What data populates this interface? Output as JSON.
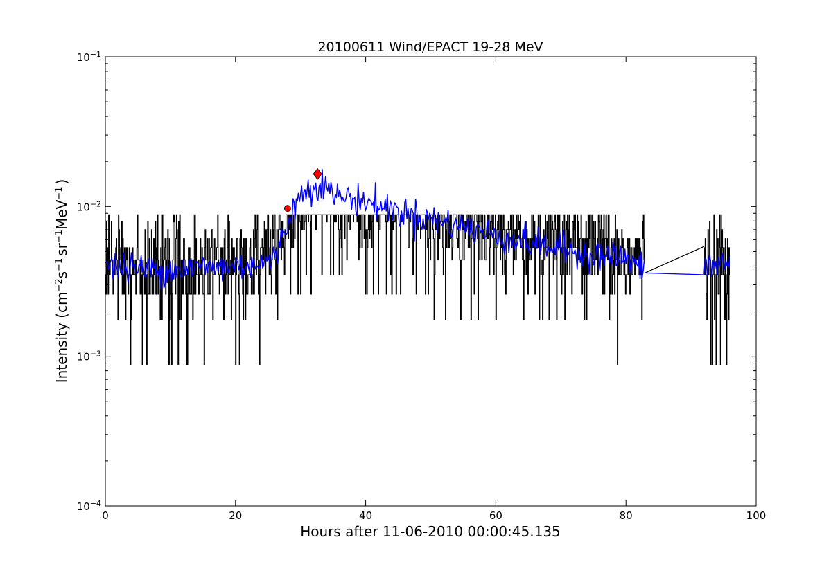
{
  "chart_data": {
    "type": "line",
    "title": "20100611 Wind/EPACT 19-28 MeV",
    "xlabel": "Hours after 11-06-2010 00:00:45.135",
    "ylabel": {
      "prefix": "Intensity (cm",
      "sup1": "−2",
      "mid1": "s",
      "sup2": "−1",
      "mid2": "sr",
      "sup3": "−1",
      "mid3": "MeV",
      "sup4": "−1",
      "suffix": ")"
    },
    "xlim": [
      0,
      100
    ],
    "ylim": [
      0.0001,
      0.1
    ],
    "yscale": "log",
    "grid": false,
    "x_ticks": [
      {
        "value": 0,
        "label": "0"
      },
      {
        "value": 20,
        "label": "20"
      },
      {
        "value": 40,
        "label": "40"
      },
      {
        "value": 60,
        "label": "60"
      },
      {
        "value": 80,
        "label": "80"
      },
      {
        "value": 100,
        "label": "100"
      }
    ],
    "y_ticks": [
      {
        "value": 0.0001,
        "base": "10",
        "exp": "−4"
      },
      {
        "value": 0.001,
        "base": "10",
        "exp": "−3"
      },
      {
        "value": 0.01,
        "base": "10",
        "exp": "−2"
      },
      {
        "value": 0.1,
        "base": "10",
        "exp": "−1"
      }
    ],
    "series": [
      {
        "color": "#000000",
        "kind": "raw",
        "levels": [
          0.00088,
          0.00175,
          0.0026,
          0.0035,
          0.0044,
          0.0053,
          0.0061,
          0.007,
          0.0079,
          0.0088
        ],
        "segments": [
          {
            "x_start": 0.0,
            "x_end": 82.9
          },
          {
            "x_start": 92.0,
            "x_end": 96.0
          }
        ],
        "trend": [
          [
            0,
            0.0042
          ],
          [
            5,
            0.004
          ],
          [
            10,
            0.0039
          ],
          [
            15,
            0.004
          ],
          [
            20,
            0.0041
          ],
          [
            24,
            0.0042
          ],
          [
            26,
            0.0045
          ],
          [
            27.5,
            0.007
          ],
          [
            29,
            0.0105
          ],
          [
            31,
            0.0135
          ],
          [
            33,
            0.015
          ],
          [
            35,
            0.0125
          ],
          [
            40,
            0.011
          ],
          [
            45,
            0.0095
          ],
          [
            50,
            0.0085
          ],
          [
            55,
            0.0075
          ],
          [
            60,
            0.0066
          ],
          [
            65,
            0.0058
          ],
          [
            70,
            0.0053
          ],
          [
            75,
            0.0049
          ],
          [
            80,
            0.0046
          ],
          [
            82.9,
            0.004
          ],
          [
            92,
            0.0042
          ],
          [
            96,
            0.0043
          ]
        ],
        "gap_line": [
          [
            82.9,
            0.0036
          ],
          [
            92.0,
            0.0054
          ]
        ]
      },
      {
        "color": "#0000ff",
        "kind": "smoothed",
        "trend": [
          [
            0,
            0.004
          ],
          [
            5,
            0.0038
          ],
          [
            10,
            0.0038
          ],
          [
            15,
            0.0039
          ],
          [
            20,
            0.004
          ],
          [
            24,
            0.0042
          ],
          [
            26,
            0.0044
          ],
          [
            27.5,
            0.0068
          ],
          [
            29,
            0.0102
          ],
          [
            31,
            0.013
          ],
          [
            33,
            0.0145
          ],
          [
            35,
            0.012
          ],
          [
            40,
            0.0108
          ],
          [
            45,
            0.0093
          ],
          [
            50,
            0.0083
          ],
          [
            55,
            0.0073
          ],
          [
            60,
            0.0064
          ],
          [
            65,
            0.0057
          ],
          [
            70,
            0.0052
          ],
          [
            75,
            0.0048
          ],
          [
            80,
            0.0045
          ],
          [
            82.9,
            0.0037
          ],
          [
            92,
            0.004
          ],
          [
            96,
            0.0042
          ]
        ],
        "gap_line": [
          [
            82.9,
            0.0036
          ],
          [
            92.0,
            0.0035
          ]
        ]
      }
    ],
    "markers": [
      {
        "shape": "circle",
        "color": "#ff0000",
        "x": 28.0,
        "y": 0.0097
      },
      {
        "shape": "diamond",
        "color": "#ff0000",
        "x": 32.6,
        "y": 0.0165
      }
    ]
  }
}
